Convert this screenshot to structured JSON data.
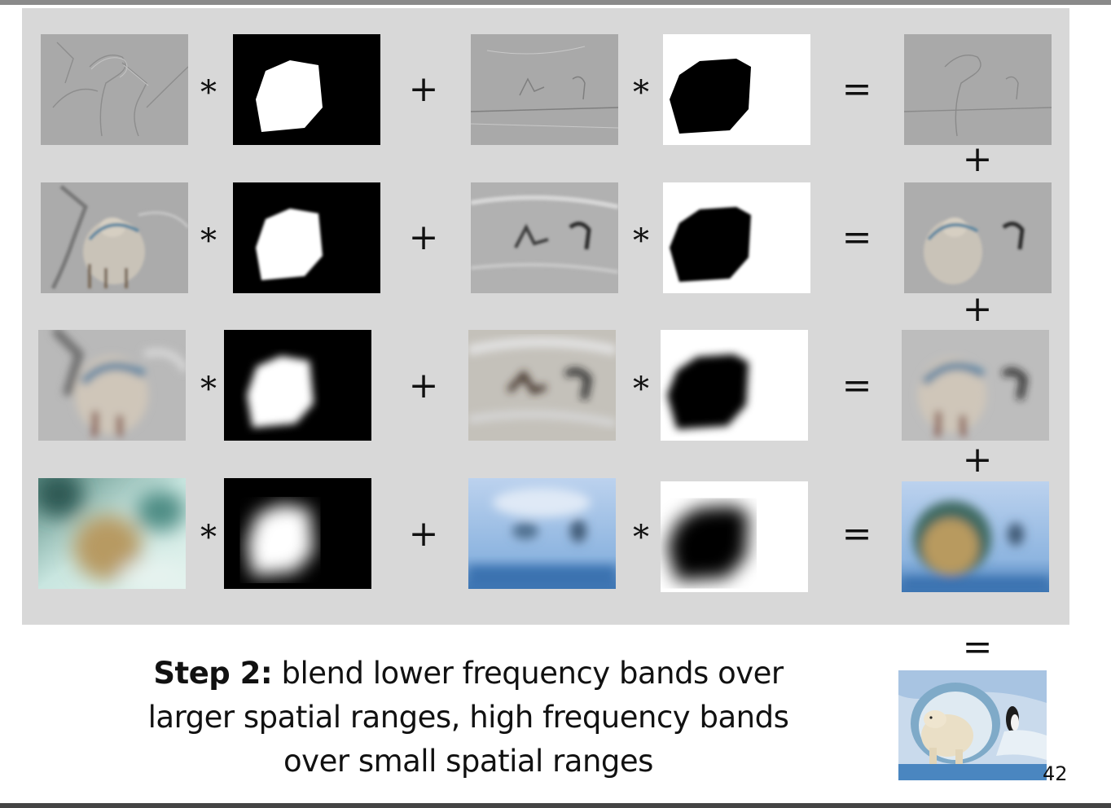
{
  "operators": {
    "multiply": "*",
    "plus": "+",
    "equals": "="
  },
  "caption": {
    "bold": "Step 2:",
    "line1": " blend lower frequency bands over",
    "line2": "larger spatial ranges, high frequency bands",
    "line3": "over small spatial ranges"
  },
  "slide_number": "42",
  "colors": {
    "panel_bg": "#d8d8d8",
    "band_gray": "#a9a9a9",
    "mask_white": "#ffffff",
    "mask_black": "#000000",
    "sky_blue": "#8fb6e0",
    "ice": "#dfe8ee"
  },
  "rows": [
    {
      "band_level": "high-frequency-1",
      "mask_blur": 0
    },
    {
      "band_level": "high-frequency-2",
      "mask_blur": 1
    },
    {
      "band_level": "mid-frequency",
      "mask_blur": 2
    },
    {
      "band_level": "low-frequency",
      "mask_blur": 3
    }
  ]
}
